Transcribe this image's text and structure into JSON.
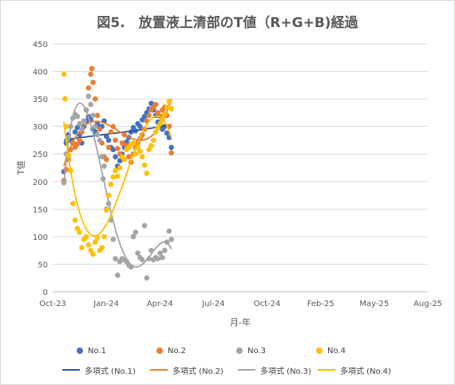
{
  "chart_data": {
    "type": "scatter",
    "title": "図5.　放置液上清部のT値（R+G+B)経過",
    "xlabel": "月-年",
    "ylabel": "T値",
    "x_ticks": [
      "Oct-23",
      "Jan-24",
      "Apr-24",
      "Jul-24",
      "Oct-24",
      "Feb-25",
      "May-25",
      "Aug-25"
    ],
    "y_ticks": [
      "0",
      "50",
      "100",
      "150",
      "200",
      "250",
      "300",
      "350",
      "400",
      "450"
    ],
    "ylim": [
      0,
      450
    ],
    "grid": "horizontal",
    "legend_position": "bottom",
    "series": [
      {
        "name": "No.1",
        "color": "#4472C4",
        "points": [
          [
            0,
            218
          ],
          [
            4,
            270
          ],
          [
            8,
            285
          ],
          [
            12,
            275
          ],
          [
            16,
            270
          ],
          [
            20,
            290
          ],
          [
            24,
            298
          ],
          [
            28,
            285
          ],
          [
            32,
            270
          ],
          [
            36,
            300
          ],
          [
            40,
            310
          ],
          [
            44,
            318
          ],
          [
            48,
            312
          ],
          [
            52,
            295
          ],
          [
            56,
            290
          ],
          [
            60,
            305
          ],
          [
            64,
            298
          ],
          [
            68,
            300
          ],
          [
            72,
            310
          ],
          [
            76,
            282
          ],
          [
            80,
            275
          ],
          [
            84,
            262
          ],
          [
            88,
            258
          ],
          [
            92,
            245
          ],
          [
            96,
            228
          ],
          [
            100,
            238
          ],
          [
            104,
            250
          ],
          [
            108,
            262
          ],
          [
            112,
            272
          ],
          [
            116,
            280
          ],
          [
            120,
            290
          ],
          [
            124,
            298
          ],
          [
            128,
            292
          ],
          [
            132,
            305
          ],
          [
            136,
            300
          ],
          [
            140,
            312
          ],
          [
            144,
            318
          ],
          [
            148,
            325
          ],
          [
            152,
            332
          ],
          [
            156,
            342
          ],
          [
            160,
            330
          ],
          [
            164,
            320
          ],
          [
            168,
            308
          ],
          [
            172,
            300
          ],
          [
            176,
            295
          ],
          [
            180,
            300
          ],
          [
            184,
            288
          ],
          [
            188,
            280
          ],
          [
            192,
            262
          ]
        ]
      },
      {
        "name": "No.2",
        "color": "#ED7D31",
        "points": [
          [
            0,
            202
          ],
          [
            4,
            222
          ],
          [
            8,
            240
          ],
          [
            12,
            258
          ],
          [
            16,
            270
          ],
          [
            20,
            262
          ],
          [
            24,
            268
          ],
          [
            28,
            275
          ],
          [
            32,
            290
          ],
          [
            36,
            310
          ],
          [
            40,
            330
          ],
          [
            44,
            370
          ],
          [
            48,
            395
          ],
          [
            50,
            405
          ],
          [
            52,
            380
          ],
          [
            56,
            350
          ],
          [
            60,
            320
          ],
          [
            64,
            295
          ],
          [
            68,
            270
          ],
          [
            72,
            245
          ],
          [
            76,
            240
          ],
          [
            80,
            262
          ],
          [
            84,
            290
          ],
          [
            88,
            300
          ],
          [
            92,
            275
          ],
          [
            96,
            260
          ],
          [
            100,
            250
          ],
          [
            104,
            270
          ],
          [
            108,
            285
          ],
          [
            112,
            265
          ],
          [
            116,
            245
          ],
          [
            120,
            235
          ],
          [
            124,
            250
          ],
          [
            128,
            262
          ],
          [
            132,
            270
          ],
          [
            136,
            278
          ],
          [
            140,
            285
          ],
          [
            144,
            295
          ],
          [
            148,
            310
          ],
          [
            152,
            320
          ],
          [
            156,
            330
          ],
          [
            160,
            335
          ],
          [
            164,
            340
          ],
          [
            168,
            325
          ],
          [
            172,
            318
          ],
          [
            176,
            330
          ],
          [
            180,
            335
          ],
          [
            184,
            320
          ],
          [
            188,
            300
          ],
          [
            192,
            252
          ]
        ]
      },
      {
        "name": "No.3",
        "color": "#A5A5A5",
        "points": [
          [
            0,
            198
          ],
          [
            4,
            250
          ],
          [
            8,
            280
          ],
          [
            12,
            300
          ],
          [
            16,
            315
          ],
          [
            20,
            322
          ],
          [
            24,
            318
          ],
          [
            28,
            305
          ],
          [
            32,
            295
          ],
          [
            36,
            310
          ],
          [
            40,
            330
          ],
          [
            44,
            355
          ],
          [
            48,
            340
          ],
          [
            52,
            320
          ],
          [
            56,
            300
          ],
          [
            60,
            285
          ],
          [
            64,
            275
          ],
          [
            68,
            245
          ],
          [
            70,
            205
          ],
          [
            72,
            228
          ],
          [
            76,
            150
          ],
          [
            80,
            160
          ],
          [
            84,
            130
          ],
          [
            88,
            95
          ],
          [
            92,
            60
          ],
          [
            96,
            30
          ],
          [
            100,
            55
          ],
          [
            104,
            60
          ],
          [
            108,
            58
          ],
          [
            112,
            55
          ],
          [
            116,
            48
          ],
          [
            120,
            45
          ],
          [
            124,
            100
          ],
          [
            128,
            108
          ],
          [
            132,
            70
          ],
          [
            136,
            62
          ],
          [
            140,
            58
          ],
          [
            144,
            120
          ],
          [
            148,
            25
          ],
          [
            152,
            60
          ],
          [
            156,
            75
          ],
          [
            160,
            58
          ],
          [
            164,
            62
          ],
          [
            168,
            60
          ],
          [
            172,
            70
          ],
          [
            176,
            62
          ],
          [
            180,
            75
          ],
          [
            184,
            90
          ],
          [
            188,
            110
          ],
          [
            192,
            95
          ]
        ]
      },
      {
        "name": "No.4",
        "color": "#FFC000",
        "points": [
          [
            0,
            395
          ],
          [
            2,
            350
          ],
          [
            4,
            300
          ],
          [
            8,
            248
          ],
          [
            12,
            220
          ],
          [
            16,
            160
          ],
          [
            20,
            130
          ],
          [
            24,
            115
          ],
          [
            28,
            108
          ],
          [
            32,
            80
          ],
          [
            36,
            95
          ],
          [
            40,
            100
          ],
          [
            44,
            85
          ],
          [
            48,
            75
          ],
          [
            52,
            68
          ],
          [
            56,
            90
          ],
          [
            60,
            98
          ],
          [
            64,
            75
          ],
          [
            68,
            80
          ],
          [
            72,
            100
          ],
          [
            76,
            148
          ],
          [
            80,
            175
          ],
          [
            84,
            195
          ],
          [
            88,
            208
          ],
          [
            92,
            220
          ],
          [
            96,
            210
          ],
          [
            100,
            225
          ],
          [
            104,
            245
          ],
          [
            108,
            240
          ],
          [
            112,
            258
          ],
          [
            116,
            262
          ],
          [
            120,
            268
          ],
          [
            124,
            270
          ],
          [
            128,
            250
          ],
          [
            132,
            262
          ],
          [
            136,
            255
          ],
          [
            140,
            245
          ],
          [
            144,
            230
          ],
          [
            148,
            215
          ],
          [
            152,
            258
          ],
          [
            156,
            265
          ],
          [
            160,
            275
          ],
          [
            164,
            290
          ],
          [
            168,
            298
          ],
          [
            172,
            305
          ],
          [
            176,
            312
          ],
          [
            180,
            322
          ],
          [
            184,
            335
          ],
          [
            188,
            345
          ],
          [
            192,
            332
          ]
        ]
      },
      {
        "name": "多項式 (No.1)",
        "color": "#2F5597",
        "type": "trend"
      },
      {
        "name": "多項式 (No.2)",
        "color": "#ED7D31",
        "type": "trend"
      },
      {
        "name": "多項式 (No.3)",
        "color": "#A5A5A5",
        "type": "trend"
      },
      {
        "name": "多項式 (No.4)",
        "color": "#FFC000",
        "type": "trend"
      }
    ]
  }
}
